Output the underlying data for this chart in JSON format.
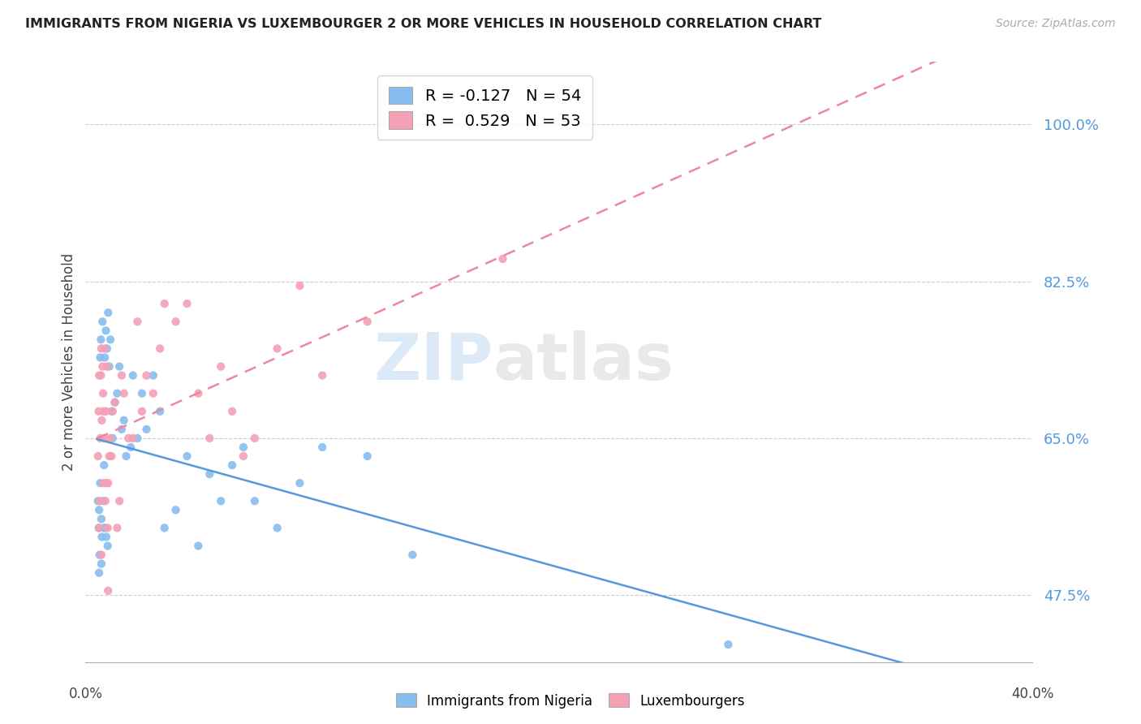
{
  "title": "IMMIGRANTS FROM NIGERIA VS LUXEMBOURGER 2 OR MORE VEHICLES IN HOUSEHOLD CORRELATION CHART",
  "source": "Source: ZipAtlas.com",
  "ylabel": "2 or more Vehicles in Household",
  "ytick_labels": [
    "47.5%",
    "65.0%",
    "82.5%",
    "100.0%"
  ],
  "ytick_vals": [
    47.5,
    65.0,
    82.5,
    100.0
  ],
  "xmin": 0.0,
  "xmax": 40.0,
  "ymin": 40.0,
  "ymax": 107.0,
  "nigeria_color": "#87BEEF",
  "luxembourg_color": "#F4A0B5",
  "nigeria_R": -0.127,
  "nigeria_N": 54,
  "luxembourg_R": 0.529,
  "luxembourg_N": 53,
  "nigeria_line_color": "#5599DD",
  "luxembourg_line_color": "#EE8899",
  "watermark_zip": "ZIP",
  "watermark_atlas": "atlas",
  "nigeria_x": [
    0.05,
    0.08,
    0.1,
    0.12,
    0.15,
    0.15,
    0.18,
    0.2,
    0.22,
    0.25,
    0.28,
    0.3,
    0.32,
    0.35,
    0.38,
    0.4,
    0.42,
    0.45,
    0.48,
    0.5,
    0.55,
    0.6,
    0.65,
    0.7,
    0.8,
    0.9,
    1.0,
    1.1,
    1.2,
    1.3,
    1.5,
    1.6,
    1.8,
    2.0,
    2.2,
    2.5,
    2.8,
    3.0,
    3.5,
    4.0,
    4.5,
    5.0,
    5.5,
    6.0,
    6.5,
    7.0,
    8.0,
    9.0,
    10.0,
    12.0,
    14.0,
    0.1,
    0.2,
    28.0
  ],
  "nigeria_y": [
    58,
    55,
    57,
    52,
    60,
    74,
    76,
    56,
    54,
    78,
    58,
    55,
    62,
    74,
    55,
    77,
    54,
    75,
    53,
    79,
    73,
    76,
    68,
    65,
    69,
    70,
    73,
    66,
    67,
    63,
    64,
    72,
    65,
    70,
    66,
    72,
    68,
    55,
    57,
    63,
    53,
    61,
    58,
    62,
    64,
    58,
    55,
    60,
    64,
    63,
    52,
    50,
    51,
    42
  ],
  "luxembourg_x": [
    0.05,
    0.08,
    0.1,
    0.12,
    0.15,
    0.18,
    0.2,
    0.22,
    0.25,
    0.28,
    0.3,
    0.32,
    0.35,
    0.38,
    0.4,
    0.42,
    0.45,
    0.48,
    0.5,
    0.55,
    0.6,
    0.65,
    0.7,
    0.8,
    0.9,
    1.0,
    1.1,
    1.2,
    1.4,
    1.6,
    1.8,
    2.0,
    2.2,
    2.5,
    2.8,
    3.0,
    3.5,
    4.0,
    4.5,
    5.0,
    5.5,
    6.0,
    6.5,
    7.0,
    8.0,
    9.0,
    10.0,
    12.0,
    0.1,
    0.2,
    0.3,
    0.5,
    18.0
  ],
  "luxembourg_y": [
    63,
    68,
    72,
    58,
    65,
    72,
    75,
    67,
    73,
    70,
    68,
    65,
    75,
    58,
    68,
    60,
    73,
    55,
    60,
    63,
    65,
    63,
    68,
    69,
    55,
    58,
    72,
    70,
    65,
    65,
    78,
    68,
    72,
    70,
    75,
    80,
    78,
    80,
    70,
    65,
    73,
    68,
    63,
    65,
    75,
    82,
    72,
    78,
    55,
    52,
    60,
    48,
    85
  ]
}
